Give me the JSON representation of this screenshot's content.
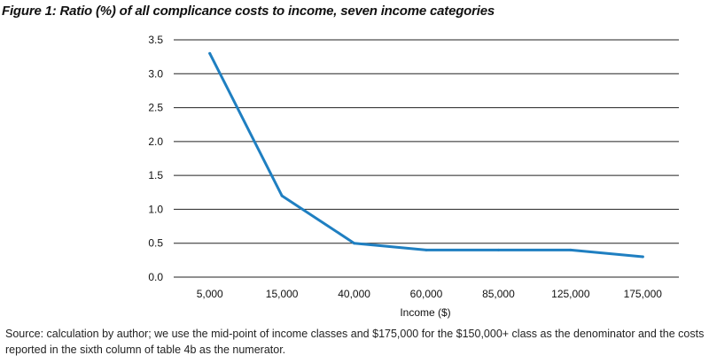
{
  "figure": {
    "title": "Figure 1: Ratio (%) of all complicance costs to income, seven income categories",
    "source_note": "Source: calculation by author; we use the mid-point of income classes and $175,000 for the $150,000+ class as the denominator and the costs reported in the sixth column of table 4b as the numerator."
  },
  "chart_data": {
    "type": "line",
    "title": "Figure 1: Ratio (%) of all complicance costs to income, seven income categories",
    "xlabel": "Income ($)",
    "ylabel": "",
    "categories": [
      "5,000",
      "15,000",
      "40,000",
      "60,000",
      "85,000",
      "125,000",
      "175,000"
    ],
    "series": [
      {
        "values": [
          3.3,
          1.2,
          0.5,
          0.4,
          0.4,
          0.4,
          0.3
        ]
      }
    ],
    "ylim": [
      0,
      3.5
    ],
    "yticks": [
      "0.0",
      "0.5",
      "1.0",
      "1.5",
      "2.0",
      "2.5",
      "3.0",
      "3.5"
    ],
    "grid": "horizontal",
    "legend": "none",
    "line_color": "#1f7fc1",
    "grid_color": "#222222"
  }
}
